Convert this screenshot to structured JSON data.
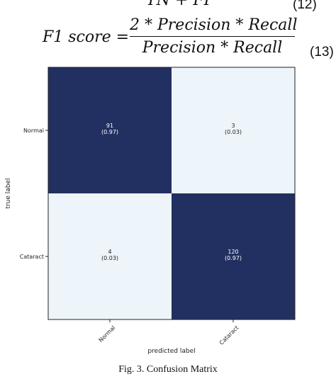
{
  "equations": {
    "eq12_tail": "TN + FP",
    "eq12_number": "(12)",
    "eq13_lhs": "F1 score =",
    "eq13_numerator": "2 * Precision * Recall",
    "eq13_denominator": "Precision * Recall",
    "eq13_number": "(13)"
  },
  "chart_data": {
    "type": "heatmap",
    "title": "",
    "xlabel": "predicted label",
    "ylabel": "true label",
    "x_categories": [
      "Normal",
      "Cataract"
    ],
    "y_categories": [
      "Normal",
      "Cataract"
    ],
    "cells": [
      [
        {
          "count": "91",
          "ratio": "(0.97)",
          "value": 0.97
        },
        {
          "count": "3",
          "ratio": "(0.03)",
          "value": 0.03
        }
      ],
      [
        {
          "count": "4",
          "ratio": "(0.03)",
          "value": 0.03
        },
        {
          "count": "120",
          "ratio": "(0.97)",
          "value": 0.97
        }
      ]
    ],
    "colors": {
      "high": "#1b2a5c",
      "low": "#f5fbff",
      "text_on_high": "#ffffff",
      "text_on_low": "#222222"
    },
    "grid": false
  },
  "caption": "Fig. 3.   Confusion Matrix"
}
